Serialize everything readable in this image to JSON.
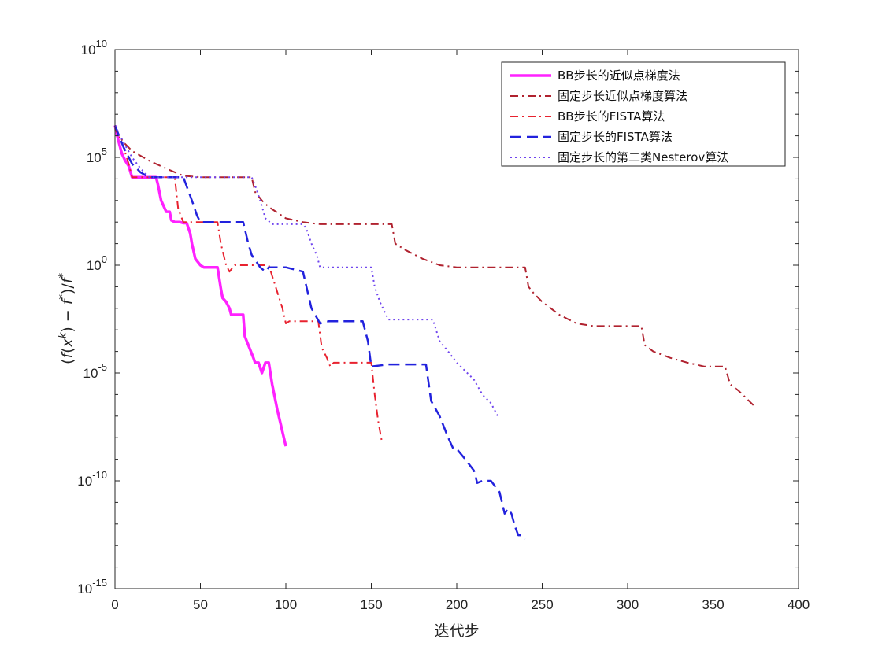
{
  "chart_data": {
    "type": "line",
    "title": "",
    "xlabel": "迭代步",
    "ylabel": "(f(x^k) − f*)/f*",
    "ylabel_parts": {
      "open": "(",
      "f": "f",
      "x": "x",
      "sup_k": "k",
      "close": ")",
      "minus": "−",
      "f2": "f",
      "star": "*",
      "slash": ")/",
      "f3": "f",
      "star2": "*"
    },
    "xlim": [
      0,
      400
    ],
    "ylim": [
      1e-15,
      10000000000.0
    ],
    "yscale": "log",
    "grid": false,
    "legend_position": "top-right",
    "x_ticks": [
      {
        "value": 0,
        "label": "0"
      },
      {
        "value": 50,
        "label": "50"
      },
      {
        "value": 100,
        "label": "100"
      },
      {
        "value": 150,
        "label": "150"
      },
      {
        "value": 200,
        "label": "200"
      },
      {
        "value": 250,
        "label": "250"
      },
      {
        "value": 300,
        "label": "300"
      },
      {
        "value": 350,
        "label": "350"
      },
      {
        "value": 400,
        "label": "400"
      }
    ],
    "y_ticks": [
      {
        "value": 10000000000.0,
        "base": "10",
        "exp": "10"
      },
      {
        "value": 100000.0,
        "base": "10",
        "exp": "5"
      },
      {
        "value": 1,
        "base": "10",
        "exp": "0"
      },
      {
        "value": 1e-05,
        "base": "10",
        "exp": "-5"
      },
      {
        "value": 1e-10,
        "base": "10",
        "exp": "-10"
      },
      {
        "value": 1e-15,
        "base": "10",
        "exp": "-15"
      }
    ],
    "series": [
      {
        "name": "BB步长的近似点梯度法",
        "color": "#ff22ff",
        "style": "solid",
        "x": [
          0,
          2,
          4,
          6,
          8,
          10,
          15,
          20,
          24,
          25,
          27,
          30,
          32,
          33,
          35,
          38,
          40,
          42,
          44,
          45,
          47,
          50,
          52,
          55,
          60,
          62,
          63,
          65,
          67,
          68,
          70,
          75,
          76,
          78,
          80,
          81,
          82,
          84,
          86,
          88,
          90,
          92,
          95,
          100
        ],
        "y": [
          3000000.0,
          600000.0,
          150000.0,
          70000.0,
          40000.0,
          12000.0,
          12000.0,
          12000.0,
          12000.0,
          6000,
          1000,
          300,
          300,
          120,
          100,
          100,
          90,
          90,
          30,
          10,
          2,
          1,
          0.8,
          0.8,
          0.8,
          0.08,
          0.03,
          0.02,
          0.01,
          0.005,
          0.005,
          0.005,
          0.0005,
          0.0002,
          8e-05,
          5e-05,
          3e-05,
          3e-05,
          1e-05,
          3e-05,
          3e-05,
          3e-06,
          2e-07,
          4e-09
        ]
      },
      {
        "name": "固定步长近似点梯度算法",
        "color": "#b0222f",
        "style": "dashdot",
        "x": [
          0,
          5,
          10,
          20,
          30,
          40,
          50,
          80,
          82,
          86,
          90,
          100,
          110,
          120,
          130,
          150,
          162,
          164,
          170,
          180,
          190,
          200,
          210,
          240,
          242,
          245,
          250,
          260,
          270,
          280,
          300,
          308,
          310,
          315,
          325,
          335,
          345,
          357,
          360,
          365,
          375
        ],
        "y": [
          2000000.0,
          500000.0,
          200000.0,
          70000.0,
          30000.0,
          14000.0,
          12000.0,
          12000.0,
          2500,
          1000,
          500,
          150,
          100,
          80,
          80,
          80,
          80,
          10,
          5,
          2,
          1,
          0.8,
          0.8,
          0.8,
          0.1,
          0.05,
          0.02,
          0.005,
          0.002,
          0.0015,
          0.0015,
          0.0015,
          0.0002,
          0.0001,
          5e-05,
          3e-05,
          2e-05,
          2e-05,
          3e-06,
          1.5e-06,
          2.5e-07
        ]
      },
      {
        "name": "BB步长的FISTA算法",
        "color": "#e8222f",
        "style": "dashdot",
        "x": [
          0,
          5,
          8,
          10,
          20,
          35,
          37,
          40,
          50,
          60,
          62,
          65,
          67,
          70,
          80,
          90,
          98,
          100,
          102,
          110,
          119,
          121,
          124,
          126,
          128,
          130,
          140,
          150,
          152,
          154,
          156
        ],
        "y": [
          3000000.0,
          300000.0,
          50000.0,
          12000.0,
          12000.0,
          12000.0,
          400,
          100,
          100,
          100,
          10,
          1,
          0.5,
          1,
          1,
          1,
          0.01,
          0.002,
          0.0025,
          0.0025,
          0.0025,
          0.00015,
          5e-05,
          2e-05,
          3e-05,
          3e-05,
          3e-05,
          3e-05,
          1e-06,
          6e-08,
          8e-09
        ]
      },
      {
        "name": "固定步长的FISTA算法",
        "color": "#2222dd",
        "style": "dashed",
        "x": [
          0,
          5,
          10,
          15,
          20,
          30,
          40,
          45,
          48,
          50,
          52,
          55,
          60,
          70,
          75,
          78,
          80,
          85,
          88,
          90,
          95,
          100,
          110,
          115,
          120,
          125,
          128,
          130,
          135,
          140,
          145,
          148,
          150,
          160,
          165,
          175,
          182,
          185,
          190,
          195,
          198,
          200,
          205,
          210,
          212,
          215,
          220,
          225,
          228,
          230,
          232,
          234,
          236,
          238,
          240
        ],
        "y": [
          3000000.0,
          300000.0,
          50000.0,
          20000.0,
          12000.0,
          12000.0,
          12000.0,
          1000.0,
          200,
          100,
          100,
          100,
          100,
          100,
          100,
          10,
          3,
          0.8,
          0.5,
          0.8,
          0.8,
          0.8,
          0.5,
          0.01,
          0.002,
          0.0025,
          0.0025,
          0.0025,
          0.0025,
          0.0025,
          0.0025,
          0.0003,
          2e-05,
          2.5e-05,
          2.5e-05,
          2.5e-05,
          2.5e-05,
          5e-07,
          1e-07,
          1e-08,
          3e-09,
          3e-09,
          1e-09,
          3e-10,
          8e-11,
          1e-10,
          1e-10,
          3e-11,
          3e-12,
          5e-12,
          3e-12,
          8e-13,
          3e-13,
          3e-13,
          2e-13
        ]
      },
      {
        "name": "固定步长的第二类Nesterov算法",
        "color": "#6f44ee",
        "style": "dotted",
        "x": [
          0,
          5,
          10,
          15,
          20,
          30,
          40,
          50,
          60,
          70,
          80,
          82,
          85,
          88,
          92,
          98,
          100,
          110,
          112,
          115,
          118,
          120,
          130,
          140,
          150,
          152,
          155,
          160,
          165,
          170,
          180,
          186,
          190,
          195,
          200,
          210,
          215,
          220,
          224
        ],
        "y": [
          3000000.0,
          500000.0,
          100000.0,
          30000.0,
          12000.0,
          12000.0,
          12000.0,
          12000.0,
          12000.0,
          12000.0,
          12000.0,
          5000,
          1000,
          150,
          80,
          80,
          80,
          80,
          50,
          10,
          3,
          0.8,
          0.8,
          0.8,
          0.8,
          0.1,
          0.02,
          0.003,
          0.003,
          0.003,
          0.003,
          0.003,
          0.0003,
          0.0001,
          3e-05,
          5e-06,
          1e-06,
          4e-07,
          1e-07
        ]
      }
    ]
  }
}
